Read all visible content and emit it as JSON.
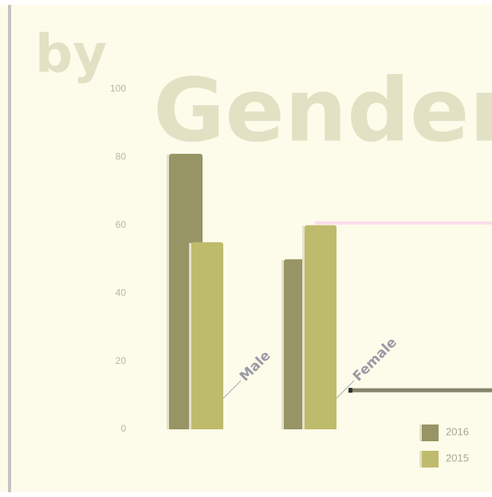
{
  "chart_data": {
    "type": "bar",
    "title": [
      "by",
      "Gender"
    ],
    "categories": [
      "Male",
      "Female"
    ],
    "series": [
      {
        "name": "2016",
        "color": "#979465",
        "values": [
          81,
          50
        ]
      },
      {
        "name": "2015",
        "color": "#bfbb6c",
        "values": [
          55,
          60
        ]
      }
    ],
    "ylim": [
      0,
      100
    ],
    "yticks": [
      0,
      20,
      40,
      60,
      80,
      100
    ]
  }
}
